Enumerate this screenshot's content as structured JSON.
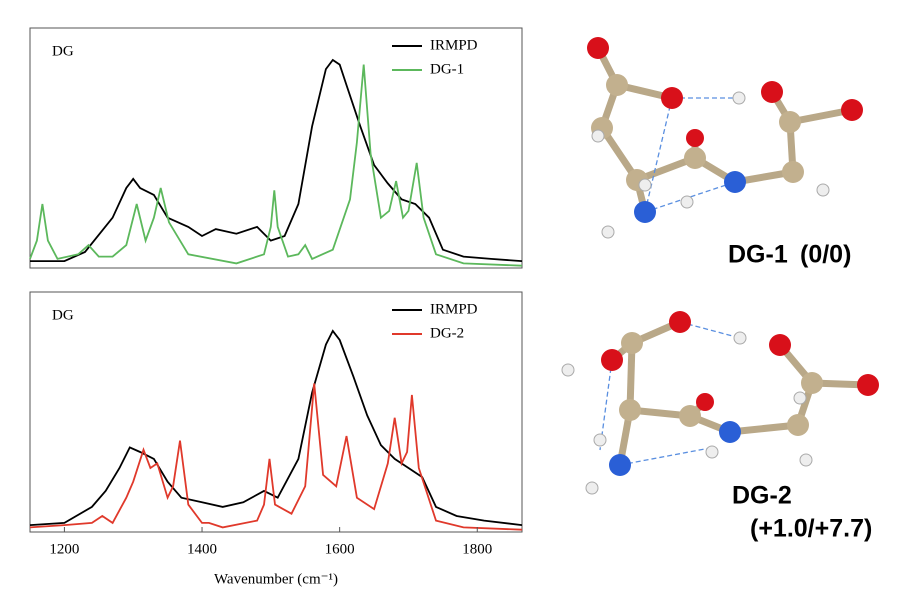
{
  "chart_data": [
    {
      "type": "line",
      "annotation": "DG",
      "legend": "upper right",
      "xlim": [
        1150,
        1865
      ],
      "ylim": [
        0,
        1.05
      ],
      "series": [
        {
          "name": "IRMPD",
          "color": "#000000",
          "x": [
            1150,
            1200,
            1230,
            1270,
            1290,
            1300,
            1310,
            1330,
            1350,
            1380,
            1400,
            1420,
            1450,
            1480,
            1500,
            1520,
            1540,
            1560,
            1580,
            1590,
            1600,
            1610,
            1630,
            1650,
            1670,
            1690,
            1710,
            1730,
            1750,
            1780,
            1820,
            1865
          ],
          "values": [
            0.03,
            0.03,
            0.07,
            0.22,
            0.35,
            0.39,
            0.35,
            0.32,
            0.22,
            0.18,
            0.14,
            0.17,
            0.15,
            0.18,
            0.12,
            0.14,
            0.28,
            0.62,
            0.87,
            0.91,
            0.89,
            0.8,
            0.62,
            0.45,
            0.37,
            0.3,
            0.28,
            0.22,
            0.08,
            0.05,
            0.04,
            0.03
          ]
        },
        {
          "name": "DG-1",
          "color": "#5cb85c",
          "x": [
            1150,
            1160,
            1168,
            1176,
            1190,
            1220,
            1235,
            1250,
            1270,
            1290,
            1305,
            1318,
            1330,
            1340,
            1352,
            1380,
            1450,
            1490,
            1500,
            1505,
            1510,
            1525,
            1540,
            1550,
            1560,
            1590,
            1615,
            1625,
            1635,
            1645,
            1660,
            1672,
            1682,
            1692,
            1700,
            1712,
            1722,
            1740,
            1780,
            1865
          ],
          "values": [
            0.04,
            0.12,
            0.28,
            0.12,
            0.04,
            0.06,
            0.1,
            0.05,
            0.05,
            0.1,
            0.28,
            0.12,
            0.22,
            0.35,
            0.2,
            0.06,
            0.02,
            0.06,
            0.18,
            0.34,
            0.18,
            0.05,
            0.06,
            0.1,
            0.04,
            0.08,
            0.3,
            0.55,
            0.89,
            0.5,
            0.22,
            0.25,
            0.38,
            0.22,
            0.25,
            0.46,
            0.22,
            0.06,
            0.02,
            0.01
          ]
        }
      ]
    },
    {
      "type": "line",
      "annotation": "DG",
      "legend": "upper right",
      "xlim": [
        1150,
        1865
      ],
      "ylim": [
        0,
        1.05
      ],
      "xticks": [
        1200,
        1400,
        1600,
        1800
      ],
      "xlabel": "Wavenumber (cm⁻¹)",
      "series": [
        {
          "name": "IRMPD",
          "color": "#000000",
          "x": [
            1150,
            1200,
            1240,
            1260,
            1280,
            1295,
            1310,
            1330,
            1350,
            1370,
            1400,
            1430,
            1460,
            1490,
            1510,
            1540,
            1560,
            1580,
            1590,
            1600,
            1620,
            1640,
            1660,
            1680,
            1700,
            1720,
            1740,
            1770,
            1810,
            1865
          ],
          "values": [
            0.03,
            0.04,
            0.11,
            0.18,
            0.28,
            0.37,
            0.35,
            0.32,
            0.22,
            0.15,
            0.13,
            0.11,
            0.13,
            0.18,
            0.15,
            0.32,
            0.61,
            0.82,
            0.88,
            0.84,
            0.68,
            0.51,
            0.38,
            0.32,
            0.28,
            0.24,
            0.11,
            0.07,
            0.05,
            0.03
          ]
        },
        {
          "name": "DG-2",
          "color": "#e0392b",
          "x": [
            1150,
            1200,
            1240,
            1255,
            1270,
            1290,
            1300,
            1315,
            1325,
            1335,
            1350,
            1358,
            1368,
            1380,
            1400,
            1410,
            1430,
            1480,
            1490,
            1498,
            1506,
            1530,
            1550,
            1563,
            1576,
            1595,
            1610,
            1625,
            1650,
            1670,
            1680,
            1690,
            1698,
            1705,
            1715,
            1740,
            1780,
            1865
          ],
          "values": [
            0.02,
            0.03,
            0.04,
            0.07,
            0.04,
            0.15,
            0.22,
            0.36,
            0.28,
            0.3,
            0.15,
            0.2,
            0.4,
            0.12,
            0.04,
            0.04,
            0.02,
            0.05,
            0.12,
            0.32,
            0.12,
            0.08,
            0.2,
            0.65,
            0.25,
            0.2,
            0.42,
            0.15,
            0.1,
            0.3,
            0.5,
            0.3,
            0.35,
            0.6,
            0.28,
            0.05,
            0.02,
            0.01
          ]
        }
      ]
    }
  ],
  "structures": [
    {
      "name": "DG-1",
      "energy": "(0/0)"
    },
    {
      "name": "DG-2",
      "energy": "(+1.0/+7.7)"
    }
  ]
}
